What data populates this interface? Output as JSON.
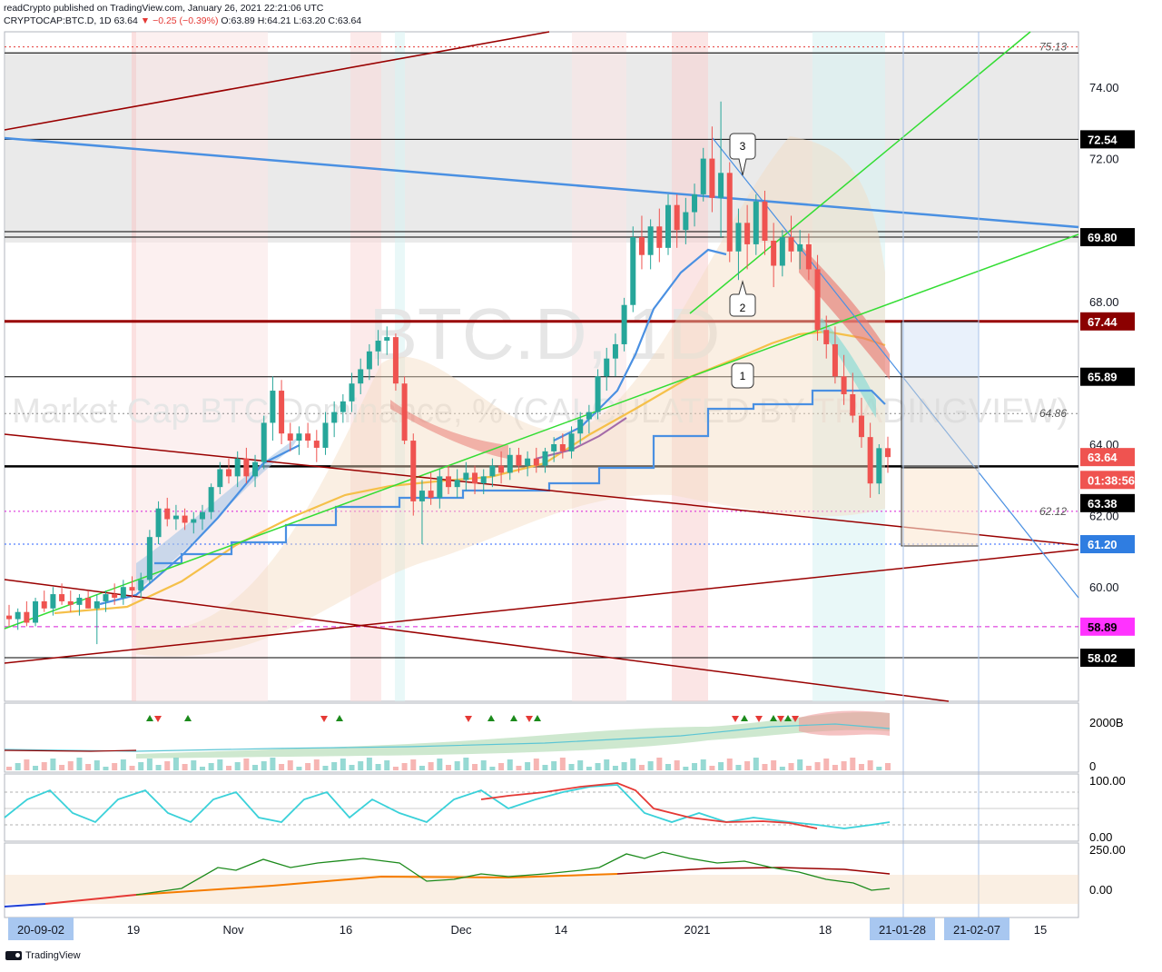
{
  "header": {
    "published_line": "readCrypto published on TradingView.com, January 26, 2021 22:21:06 UTC",
    "symbol": "CRYPTOCAP:BTC.D, 1D",
    "last": "63.64",
    "change": "▼ −0.25 (−0.39%)",
    "o": "O:63.89",
    "h": "H:64.21",
    "l": "L:63.20",
    "c": "C:63.64"
  },
  "watermark": {
    "symbol": "BTC.D, 1D",
    "description": "Market Cap BTC Dominance, % (CALCULATED BY TRADINGVIEW)"
  },
  "footer": {
    "brand": "TradingView"
  },
  "colors": {
    "candle_up": "#26a69a",
    "candle_down": "#ef5350",
    "blue_line": "#4a90e2",
    "green_line": "#33dd33",
    "dark_red": "#990000",
    "orange_ma": "#f5c04a"
  },
  "chart_data": {
    "type": "candlestick",
    "price_axis": {
      "ticks": [
        "74.00",
        "72.00",
        "68.00",
        "64.00",
        "62.00",
        "60.00"
      ],
      "labels": [
        {
          "text": "75.13",
          "value": 75.13,
          "style": "plain"
        },
        {
          "text": "72.54",
          "value": 72.54,
          "style": "black"
        },
        {
          "text": "69.80",
          "value": 69.8,
          "style": "black"
        },
        {
          "text": "67.44",
          "value": 67.44,
          "style": "darkred"
        },
        {
          "text": "65.89",
          "value": 65.89,
          "style": "black"
        },
        {
          "text": "64.86",
          "value": 64.86,
          "style": "plain"
        },
        {
          "text": "63.64",
          "value": 63.64,
          "style": "red"
        },
        {
          "text": "01:38:56",
          "value": 63.0,
          "style": "red"
        },
        {
          "text": "63.38",
          "value": 62.35,
          "style": "black"
        },
        {
          "text": "62.12",
          "value": 62.12,
          "style": "plain"
        },
        {
          "text": "61.20",
          "value": 61.2,
          "style": "blue"
        },
        {
          "text": "58.89",
          "value": 58.89,
          "style": "magenta"
        },
        {
          "text": "58.02",
          "value": 58.02,
          "style": "black"
        }
      ]
    },
    "horizontal_levels": [
      {
        "value": 75.13,
        "style": "red-dotted"
      },
      {
        "value": 74.96,
        "style": "black"
      },
      {
        "value": 72.54,
        "style": "black"
      },
      {
        "value": 69.8,
        "style": "black"
      },
      {
        "value": 67.44,
        "style": "darkred-thick"
      },
      {
        "value": 65.89,
        "style": "black"
      },
      {
        "value": 64.86,
        "style": "gray-dotted"
      },
      {
        "value": 63.38,
        "style": "black-thick"
      },
      {
        "value": 62.12,
        "style": "magenta-dotted"
      },
      {
        "value": 61.2,
        "style": "blue-dotted"
      },
      {
        "value": 58.89,
        "style": "magenta-dashed"
      },
      {
        "value": 58.02,
        "style": "black"
      }
    ],
    "time_axis": {
      "labels": [
        "20-09-02",
        "19",
        "Nov",
        "16",
        "Dec",
        "14",
        "2021",
        "18",
        "21-01-28",
        "21-02-07",
        "15"
      ],
      "highlighted": [
        "20-09-02",
        "21-01-28",
        "21-02-07"
      ]
    },
    "candles": [
      [
        59.2,
        59.5,
        58.9,
        59.1
      ],
      [
        59.1,
        59.4,
        58.8,
        59.3
      ],
      [
        59.3,
        59.6,
        58.9,
        59.0
      ],
      [
        59.0,
        59.7,
        58.9,
        59.6
      ],
      [
        59.6,
        59.9,
        59.3,
        59.4
      ],
      [
        59.4,
        60.0,
        59.2,
        59.8
      ],
      [
        59.8,
        60.1,
        59.5,
        59.6
      ],
      [
        59.6,
        59.9,
        59.3,
        59.5
      ],
      [
        59.5,
        59.8,
        59.2,
        59.7
      ],
      [
        59.7,
        59.9,
        59.4,
        59.4
      ],
      [
        59.4,
        59.8,
        58.4,
        59.6
      ],
      [
        59.6,
        59.9,
        59.3,
        59.8
      ],
      [
        59.8,
        60.1,
        59.5,
        59.7
      ],
      [
        59.7,
        60.2,
        59.5,
        60.0
      ],
      [
        60.0,
        60.3,
        59.7,
        59.9
      ],
      [
        59.9,
        60.4,
        59.7,
        60.2
      ],
      [
        60.2,
        61.6,
        60.1,
        61.4
      ],
      [
        61.4,
        62.4,
        61.2,
        62.2
      ],
      [
        62.2,
        62.5,
        61.7,
        61.9
      ],
      [
        61.9,
        62.3,
        61.6,
        62.0
      ],
      [
        62.0,
        62.2,
        61.6,
        61.8
      ],
      [
        61.8,
        62.1,
        61.5,
        61.9
      ],
      [
        61.9,
        62.3,
        61.6,
        62.1
      ],
      [
        62.1,
        62.9,
        61.9,
        62.8
      ],
      [
        62.8,
        63.5,
        62.6,
        63.3
      ],
      [
        63.3,
        63.6,
        62.9,
        63.1
      ],
      [
        63.1,
        63.8,
        62.8,
        63.6
      ],
      [
        63.6,
        63.9,
        62.9,
        63.1
      ],
      [
        63.1,
        63.7,
        62.8,
        63.5
      ],
      [
        63.5,
        64.8,
        63.3,
        64.6
      ],
      [
        64.6,
        65.9,
        64.1,
        65.5
      ],
      [
        65.5,
        65.8,
        64.0,
        64.3
      ],
      [
        64.3,
        64.6,
        63.8,
        64.1
      ],
      [
        64.1,
        64.5,
        63.7,
        64.3
      ],
      [
        64.3,
        64.6,
        63.9,
        64.1
      ],
      [
        64.1,
        64.4,
        63.5,
        63.9
      ],
      [
        63.9,
        64.9,
        63.7,
        64.6
      ],
      [
        64.6,
        65.2,
        64.2,
        64.9
      ],
      [
        64.9,
        65.4,
        64.6,
        65.2
      ],
      [
        65.2,
        66.0,
        64.9,
        65.7
      ],
      [
        65.7,
        66.4,
        65.4,
        66.1
      ],
      [
        66.1,
        66.8,
        65.8,
        66.6
      ],
      [
        66.6,
        67.2,
        66.2,
        66.9
      ],
      [
        66.9,
        67.3,
        66.5,
        67.0
      ],
      [
        67.0,
        67.1,
        65.5,
        65.7
      ],
      [
        65.7,
        65.9,
        64.0,
        64.1
      ],
      [
        64.1,
        64.3,
        62.0,
        62.4
      ],
      [
        62.4,
        63.0,
        61.2,
        62.7
      ],
      [
        62.7,
        63.2,
        62.3,
        62.5
      ],
      [
        62.5,
        63.3,
        62.2,
        63.1
      ],
      [
        63.1,
        63.4,
        62.6,
        62.8
      ],
      [
        62.8,
        63.3,
        62.5,
        63.0
      ],
      [
        63.0,
        63.5,
        62.7,
        63.2
      ],
      [
        63.2,
        63.4,
        62.6,
        62.9
      ],
      [
        62.9,
        63.3,
        62.6,
        63.1
      ],
      [
        63.1,
        63.6,
        62.8,
        63.4
      ],
      [
        63.4,
        63.8,
        62.9,
        63.2
      ],
      [
        63.2,
        63.9,
        63.0,
        63.7
      ],
      [
        63.7,
        63.9,
        63.2,
        63.4
      ],
      [
        63.4,
        63.8,
        63.1,
        63.6
      ],
      [
        63.6,
        63.9,
        63.2,
        63.4
      ],
      [
        63.4,
        63.9,
        63.2,
        63.8
      ],
      [
        63.8,
        64.2,
        63.5,
        64.0
      ],
      [
        64.0,
        64.3,
        63.6,
        63.8
      ],
      [
        63.8,
        64.5,
        63.6,
        64.3
      ],
      [
        64.3,
        64.9,
        64.0,
        64.7
      ],
      [
        64.7,
        65.1,
        64.3,
        64.9
      ],
      [
        64.9,
        66.1,
        64.7,
        65.9
      ],
      [
        65.9,
        66.7,
        65.5,
        66.4
      ],
      [
        66.4,
        67.1,
        65.9,
        66.8
      ],
      [
        66.8,
        68.1,
        66.6,
        67.9
      ],
      [
        67.9,
        70.1,
        67.7,
        69.8
      ],
      [
        69.8,
        70.4,
        68.9,
        69.3
      ],
      [
        69.3,
        70.3,
        68.9,
        70.1
      ],
      [
        70.1,
        70.6,
        69.1,
        69.5
      ],
      [
        69.5,
        71.0,
        69.3,
        70.7
      ],
      [
        70.7,
        71.0,
        69.5,
        70.0
      ],
      [
        70.0,
        70.9,
        69.6,
        70.5
      ],
      [
        70.5,
        71.3,
        70.1,
        71.0
      ],
      [
        71.0,
        72.3,
        70.8,
        72.0
      ],
      [
        72.0,
        72.9,
        70.5,
        70.9
      ],
      [
        70.9,
        73.6,
        69.8,
        71.6
      ],
      [
        71.6,
        71.9,
        69.1,
        69.4
      ],
      [
        69.4,
        70.6,
        68.6,
        70.2
      ],
      [
        70.2,
        70.7,
        68.9,
        69.6
      ],
      [
        69.6,
        71.0,
        69.3,
        70.8
      ],
      [
        70.8,
        71.1,
        69.3,
        69.7
      ],
      [
        69.7,
        70.2,
        68.4,
        69.0
      ],
      [
        69.0,
        70.0,
        68.7,
        69.8
      ],
      [
        69.8,
        70.4,
        69.1,
        69.4
      ],
      [
        69.4,
        70.0,
        68.9,
        69.6
      ],
      [
        69.6,
        69.9,
        68.6,
        68.9
      ],
      [
        68.9,
        69.3,
        66.9,
        67.2
      ],
      [
        67.2,
        67.6,
        66.4,
        66.8
      ],
      [
        66.8,
        67.3,
        65.7,
        65.9
      ],
      [
        65.9,
        66.5,
        65.1,
        65.4
      ],
      [
        65.4,
        66.0,
        64.6,
        64.8
      ],
      [
        64.8,
        65.3,
        63.9,
        64.2
      ],
      [
        64.2,
        64.6,
        62.5,
        62.9
      ],
      [
        62.9,
        64.0,
        62.6,
        63.89
      ],
      [
        63.89,
        64.21,
        63.2,
        63.64
      ]
    ]
  }
}
